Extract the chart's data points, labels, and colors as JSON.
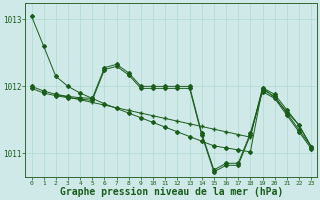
{
  "background_color": "#cfe9e9",
  "grid_color": "#b0d8d0",
  "line_color": "#1a5c1a",
  "xlabel": "Graphe pression niveau de la mer (hPa)",
  "xlabel_fontsize": 7,
  "xlim": [
    -0.5,
    23.5
  ],
  "ylim": [
    1010.65,
    1013.25
  ],
  "yticks": [
    1011,
    1012,
    1013
  ],
  "xticks": [
    0,
    1,
    2,
    3,
    4,
    5,
    6,
    7,
    8,
    9,
    10,
    11,
    12,
    13,
    14,
    15,
    16,
    17,
    18,
    19,
    20,
    21,
    22,
    23
  ],
  "s1x": [
    0,
    1,
    2,
    3,
    4,
    5,
    6,
    7,
    8,
    9,
    10,
    11,
    12,
    13,
    14,
    15,
    16,
    17,
    18,
    19,
    20,
    21,
    22,
    23
  ],
  "s1y": [
    1013.05,
    1012.6,
    1012.15,
    1012.0,
    1011.9,
    1011.82,
    1011.74,
    1011.67,
    1011.6,
    1011.53,
    1011.46,
    1011.39,
    1011.32,
    1011.25,
    1011.18,
    1011.11,
    1011.08,
    1011.05,
    1011.02,
    1011.98,
    1011.88,
    1011.65,
    1011.42,
    1011.1
  ],
  "s2x": [
    0,
    1,
    2,
    3,
    4,
    5,
    6,
    7,
    8,
    9,
    10,
    11,
    12,
    13,
    14,
    15,
    16,
    17,
    18,
    19,
    20,
    21,
    22,
    23
  ],
  "s2y": [
    1012.0,
    1011.93,
    1011.88,
    1011.85,
    1011.83,
    1011.82,
    1012.28,
    1012.33,
    1012.2,
    1012.0,
    1012.0,
    1012.0,
    1012.0,
    1012.0,
    1011.3,
    1010.75,
    1010.85,
    1010.85,
    1011.3,
    1011.95,
    1011.85,
    1011.6,
    1011.35,
    1011.1
  ],
  "s3x": [
    0,
    1,
    2,
    3,
    4,
    5,
    6,
    7,
    8,
    9,
    10,
    11,
    12,
    13,
    14,
    15,
    16,
    17,
    18,
    19,
    20,
    21,
    22,
    23
  ],
  "s3y": [
    1011.97,
    1011.9,
    1011.86,
    1011.83,
    1011.81,
    1011.79,
    1012.25,
    1012.3,
    1012.17,
    1011.97,
    1011.97,
    1011.97,
    1011.97,
    1011.97,
    1011.27,
    1010.72,
    1010.82,
    1010.82,
    1011.27,
    1011.92,
    1011.82,
    1011.57,
    1011.32,
    1011.07
  ],
  "s4x": [
    2,
    3,
    4,
    5,
    6,
    7,
    8,
    9,
    10,
    11,
    12,
    13,
    14,
    15,
    16,
    17,
    18,
    19,
    20,
    21,
    22,
    23
  ],
  "s4y": [
    1011.88,
    1011.84,
    1011.8,
    1011.76,
    1011.72,
    1011.68,
    1011.64,
    1011.6,
    1011.56,
    1011.52,
    1011.48,
    1011.44,
    1011.4,
    1011.36,
    1011.32,
    1011.28,
    1011.24,
    1011.98,
    1011.83,
    1011.62,
    1011.42,
    1011.1
  ]
}
